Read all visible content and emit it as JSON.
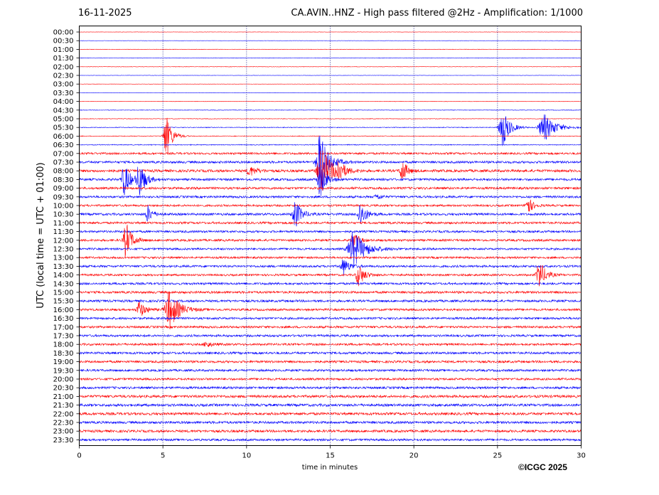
{
  "header": {
    "date": "16-11-2025",
    "title": "CA.AVIN..HNZ - High pass filtered @2Hz - Amplification: 1/1000"
  },
  "copyright": "©ICGC 2025",
  "chart_data": {
    "type": "helicorder",
    "xlabel": "time in minutes",
    "ylabel": "UTC (local time = UTC + 01:00)",
    "xlim": [
      0,
      30
    ],
    "x_ticks": [
      0,
      5,
      10,
      15,
      20,
      25,
      30
    ],
    "grid_x": [
      5,
      10,
      15,
      20,
      25
    ],
    "row_labels": [
      "00:00",
      "00:30",
      "01:00",
      "01:30",
      "02:00",
      "02:30",
      "03:00",
      "03:30",
      "04:00",
      "04:30",
      "05:00",
      "05:30",
      "06:00",
      "06:30",
      "07:00",
      "07:30",
      "08:00",
      "08:30",
      "09:00",
      "09:30",
      "10:00",
      "10:30",
      "11:00",
      "11:30",
      "12:00",
      "12:30",
      "13:00",
      "13:30",
      "14:00",
      "14:30",
      "15:00",
      "15:30",
      "16:00",
      "16:30",
      "17:00",
      "17:30",
      "18:00",
      "18:30",
      "19:00",
      "19:30",
      "20:00",
      "20:30",
      "21:00",
      "21:30",
      "22:00",
      "22:30",
      "23:00",
      "23:30"
    ],
    "colors": [
      "#ff0000",
      "#0000ff"
    ],
    "noise_level": [
      0.2,
      0.2,
      0.3,
      0.3,
      0.3,
      0.2,
      0.2,
      0.2,
      0.3,
      0.4,
      0.4,
      0.5,
      0.5,
      0.6,
      1.4,
      1.6,
      1.8,
      1.6,
      1.6,
      1.5,
      1.4,
      1.6,
      1.5,
      1.5,
      1.5,
      1.4,
      1.4,
      1.5,
      1.4,
      1.5,
      1.6,
      1.6,
      1.5,
      1.5,
      1.5,
      1.5,
      1.5,
      1.6,
      1.6,
      1.5,
      1.5,
      1.6,
      1.8,
      1.8,
      1.8,
      1.7,
      1.7,
      1.5
    ],
    "events": [
      {
        "row": 11,
        "t": 25.3,
        "amp": 30,
        "dur": 0.6
      },
      {
        "row": 11,
        "t": 27.8,
        "amp": 20,
        "dur": 1.0
      },
      {
        "row": 12,
        "t": 5.2,
        "amp": 32,
        "dur": 0.5
      },
      {
        "row": 15,
        "t": 14.4,
        "amp": 40,
        "dur": 0.7
      },
      {
        "row": 16,
        "t": 14.5,
        "amp": 34,
        "dur": 0.8
      },
      {
        "row": 16,
        "t": 15.5,
        "amp": 14,
        "dur": 0.5
      },
      {
        "row": 16,
        "t": 10.2,
        "amp": 7,
        "dur": 0.6
      },
      {
        "row": 16,
        "t": 19.3,
        "amp": 18,
        "dur": 0.4
      },
      {
        "row": 17,
        "t": 2.7,
        "amp": 24,
        "dur": 0.5
      },
      {
        "row": 17,
        "t": 3.6,
        "amp": 26,
        "dur": 0.5
      },
      {
        "row": 17,
        "t": 14.4,
        "amp": 26,
        "dur": 0.5
      },
      {
        "row": 19,
        "t": 17.8,
        "amp": 4,
        "dur": 0.4
      },
      {
        "row": 20,
        "t": 26.8,
        "amp": 14,
        "dur": 0.4
      },
      {
        "row": 21,
        "t": 4.1,
        "amp": 12,
        "dur": 0.4
      },
      {
        "row": 21,
        "t": 12.9,
        "amp": 22,
        "dur": 0.5
      },
      {
        "row": 21,
        "t": 16.8,
        "amp": 18,
        "dur": 0.5
      },
      {
        "row": 24,
        "t": 2.8,
        "amp": 26,
        "dur": 0.5
      },
      {
        "row": 24,
        "t": 16.4,
        "amp": 14,
        "dur": 0.4
      },
      {
        "row": 25,
        "t": 16.4,
        "amp": 26,
        "dur": 1.0
      },
      {
        "row": 27,
        "t": 15.8,
        "amp": 12,
        "dur": 0.5
      },
      {
        "row": 28,
        "t": 16.7,
        "amp": 16,
        "dur": 0.5
      },
      {
        "row": 28,
        "t": 27.5,
        "amp": 22,
        "dur": 0.5
      },
      {
        "row": 32,
        "t": 3.6,
        "amp": 12,
        "dur": 0.5
      },
      {
        "row": 32,
        "t": 5.4,
        "amp": 28,
        "dur": 0.8
      },
      {
        "row": 36,
        "t": 7.6,
        "amp": 4,
        "dur": 0.5
      }
    ]
  }
}
